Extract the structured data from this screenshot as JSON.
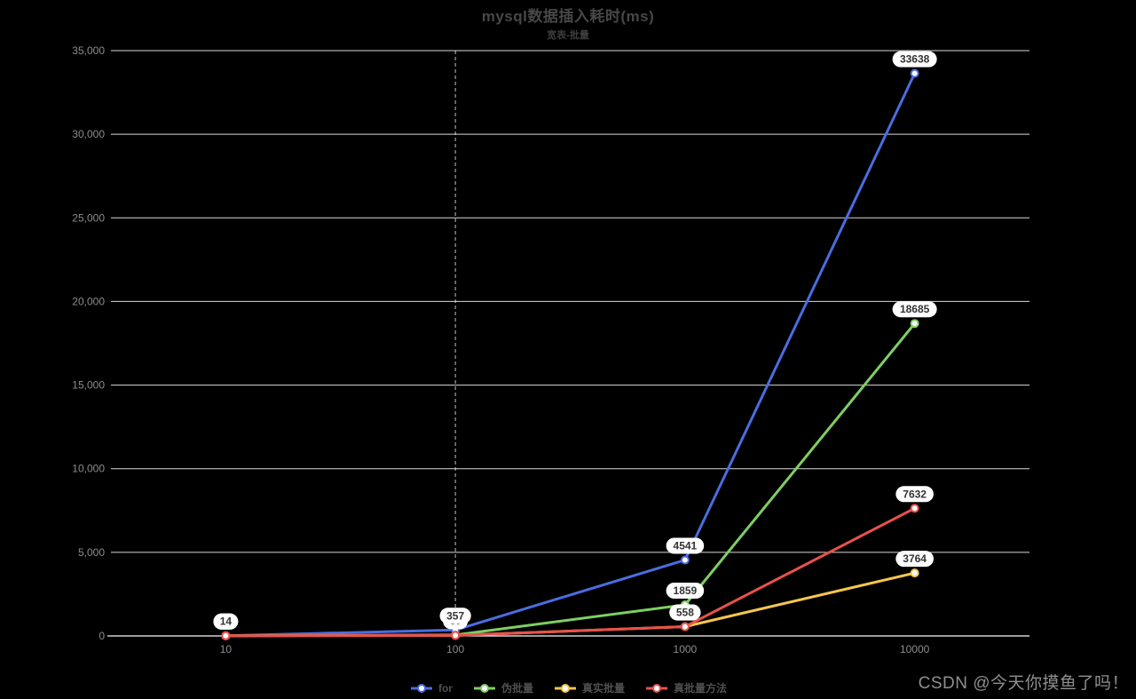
{
  "page": {
    "watermark": "CSDN @今天你摸鱼了吗！"
  },
  "chart_data": {
    "type": "line",
    "title": "mysql数据插入耗时(ms)",
    "subtitle": "宽表-批量",
    "categories": [
      "10",
      "100",
      "1000",
      "10000"
    ],
    "series": [
      {
        "name": "for",
        "color": "#4a6de0",
        "values": [
          14,
          357,
          4541,
          33638
        ]
      },
      {
        "name": "伪批量",
        "color": "#7ecf63",
        "values": [
          12,
          60,
          1859,
          18685
        ]
      },
      {
        "name": "真实批量",
        "color": "#f5c64f",
        "values": [
          9,
          30,
          558,
          3764
        ]
      },
      {
        "name": "真批量方法",
        "color": "#e9514c",
        "values": [
          10,
          35,
          553,
          7632
        ]
      }
    ],
    "ylim": [
      0,
      35000
    ],
    "ytick_interval": 5000,
    "ytick_labels": [
      "0",
      "5,000",
      "10,000",
      "15,000",
      "20,000",
      "25,000",
      "30,000",
      "35,000"
    ],
    "grid": true,
    "legend_position": "bottom",
    "axis_pointer_category_index": 1,
    "label_style": {
      "background": "#ffffff",
      "text_color": "#333333"
    },
    "axis_text_color": "#8c8c8c",
    "grid_color": "rgba(255,255,255,0.85)"
  }
}
